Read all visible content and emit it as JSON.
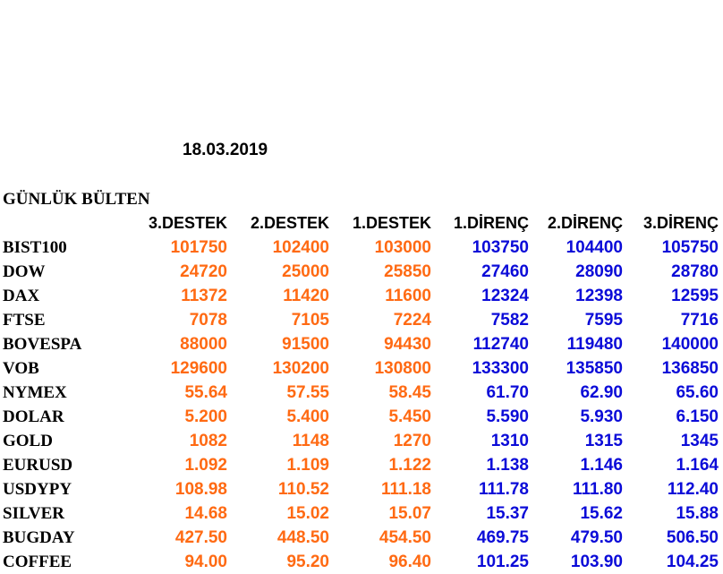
{
  "date": "18.03.2019",
  "title": "GÜNLÜK BÜLTEN",
  "colors": {
    "support": "#ff6a13",
    "resistance": "#0b0bd8",
    "text": "#000000"
  },
  "headers": [
    "3.DESTEK",
    "2.DESTEK",
    "1.DESTEK",
    "1.DİRENÇ",
    "2.DİRENÇ",
    "3.DİRENÇ"
  ],
  "rows": [
    {
      "name": "BIST100",
      "values": [
        "101750",
        "102400",
        "103000",
        "103750",
        "104400",
        "105750"
      ]
    },
    {
      "name": "DOW",
      "values": [
        "24720",
        "25000",
        "25850",
        "27460",
        "28090",
        "28780"
      ]
    },
    {
      "name": "DAX",
      "values": [
        "11372",
        "11420",
        "11600",
        "12324",
        "12398",
        "12595"
      ]
    },
    {
      "name": "FTSE",
      "values": [
        "7078",
        "7105",
        "7224",
        "7582",
        "7595",
        "7716"
      ]
    },
    {
      "name": "BOVESPA",
      "values": [
        "88000",
        "91500",
        "94430",
        "112740",
        "119480",
        "140000"
      ]
    },
    {
      "name": "VOB",
      "values": [
        "129600",
        "130200",
        "130800",
        "133300",
        "135850",
        "136850"
      ]
    },
    {
      "name": "NYMEX",
      "values": [
        "55.64",
        "57.55",
        "58.45",
        "61.70",
        "62.90",
        "65.60"
      ]
    },
    {
      "name": "DOLAR",
      "values": [
        "5.200",
        "5.400",
        "5.450",
        "5.590",
        "5.930",
        "6.150"
      ]
    },
    {
      "name": "GOLD",
      "values": [
        "1082",
        "1148",
        "1270",
        "1310",
        "1315",
        "1345"
      ]
    },
    {
      "name": "EURUSD",
      "values": [
        "1.092",
        "1.109",
        "1.122",
        "1.138",
        "1.146",
        "1.164"
      ]
    },
    {
      "name": "USDYPY",
      "values": [
        "108.98",
        "110.52",
        "111.18",
        "111.78",
        "111.80",
        "112.40"
      ]
    },
    {
      "name": "SILVER",
      "values": [
        "14.68",
        "15.02",
        "15.07",
        "15.37",
        "15.62",
        "15.88"
      ]
    },
    {
      "name": "BUGDAY",
      "values": [
        "427.50",
        "448.50",
        "454.50",
        "469.75",
        "479.50",
        "506.50"
      ]
    },
    {
      "name": "COFFEE",
      "values": [
        "94.00",
        "95.20",
        "96.40",
        "101.25",
        "103.90",
        "104.25"
      ]
    }
  ]
}
